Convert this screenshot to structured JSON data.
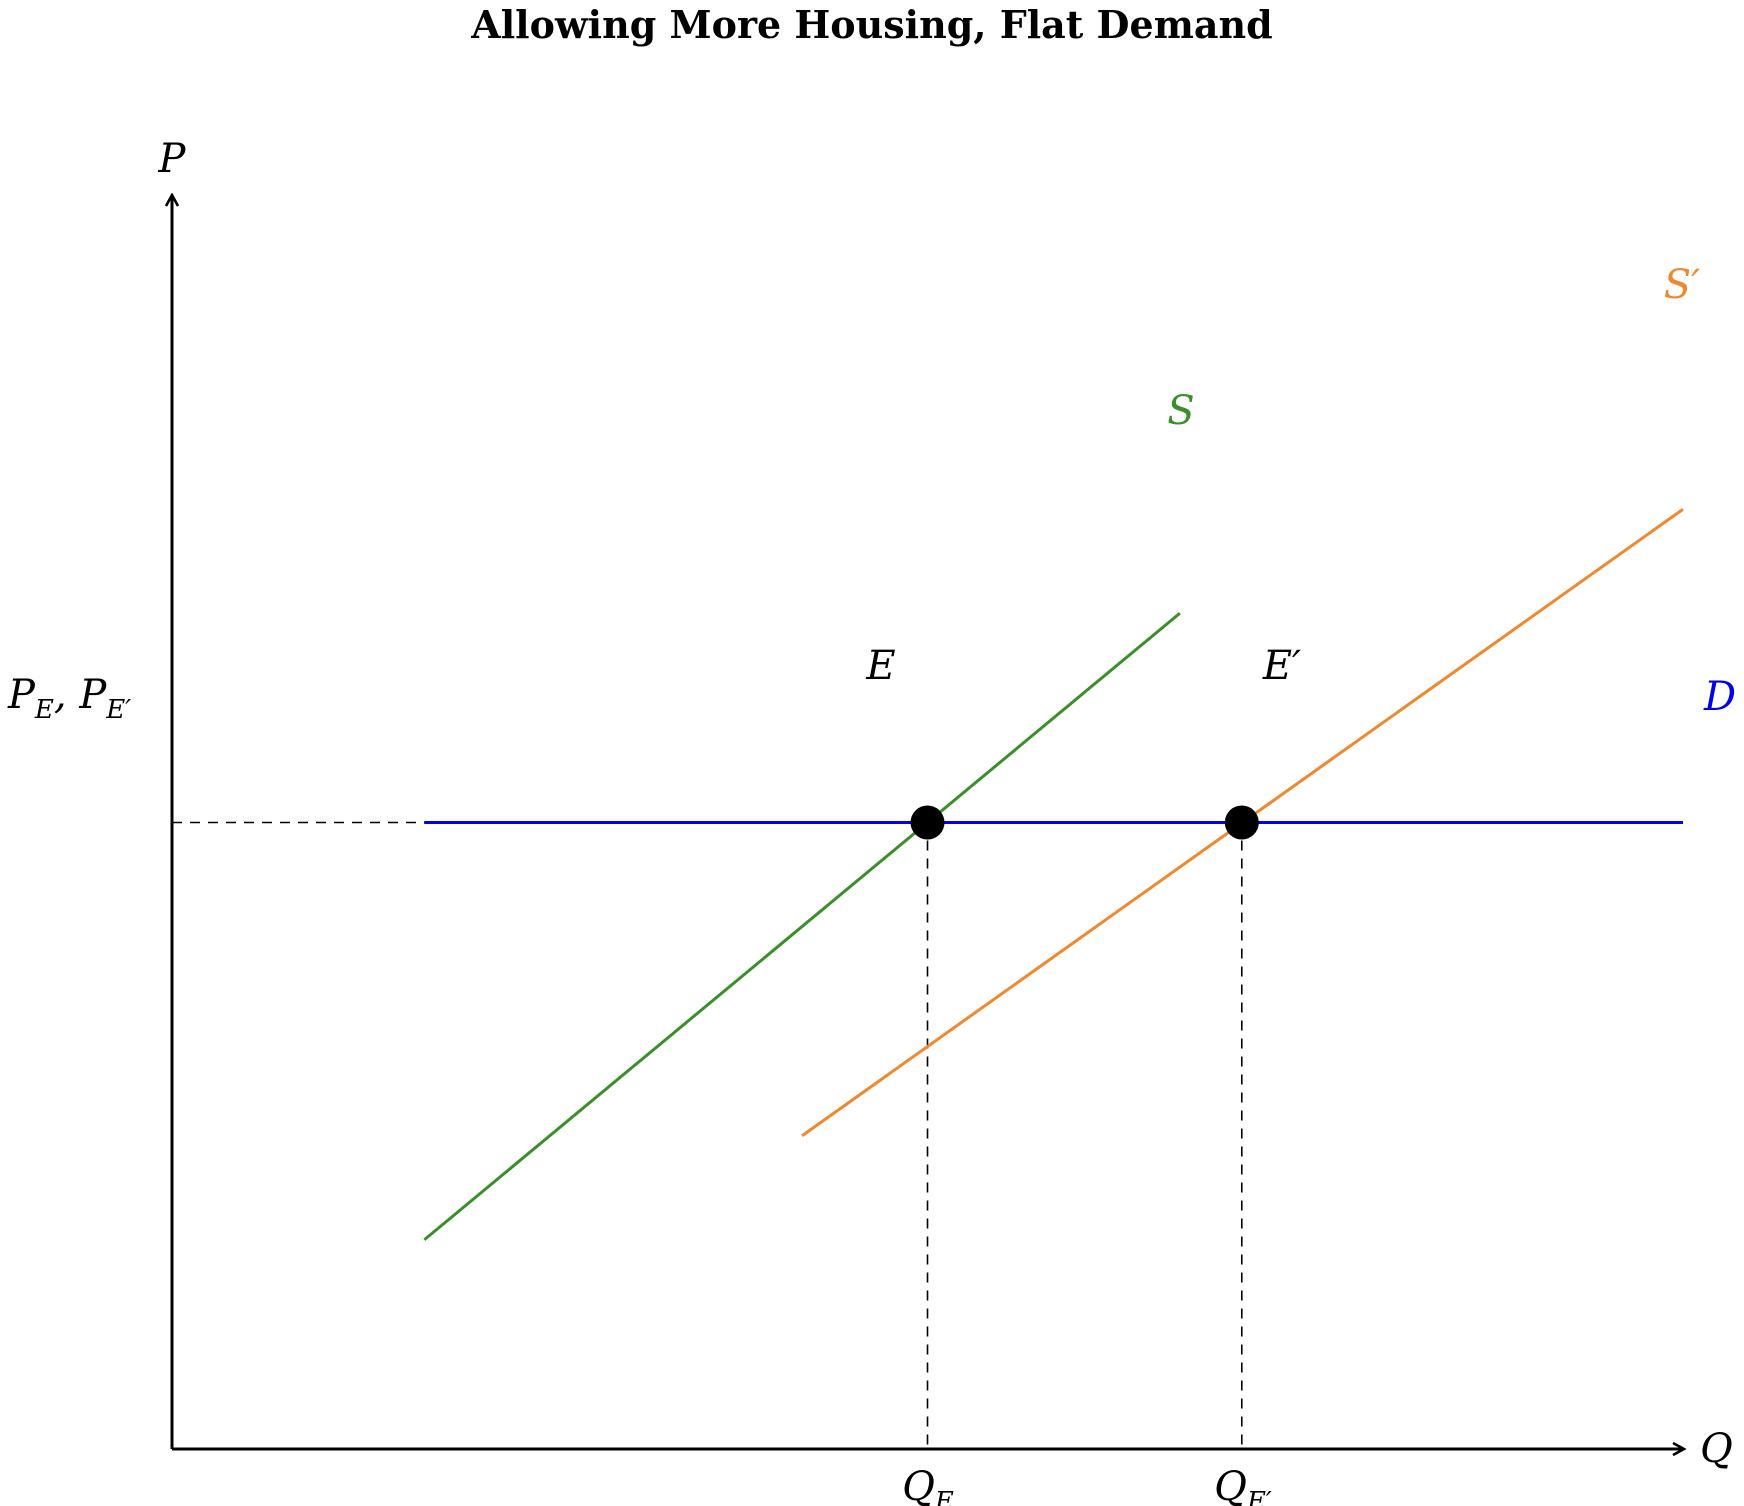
{
  "chart_data": {
    "type": "line",
    "title": "Allowing More Housing, Flat Demand",
    "xlabel": "Q",
    "ylabel": "P",
    "grid": false,
    "xlim": [
      0,
      10
    ],
    "ylim": [
      0,
      10
    ],
    "series": [
      {
        "name": "S",
        "color": "#3a8f2a",
        "x": [
          1.67,
          6.67
        ],
        "y": [
          1.67,
          6.67
        ]
      },
      {
        "name": "S′",
        "color": "#f0882f",
        "x": [
          4.17,
          10.0
        ],
        "y": [
          2.5,
          7.5
        ]
      },
      {
        "name": "D",
        "color": "#0000ee",
        "x": [
          1.67,
          10.0
        ],
        "y": [
          5.0,
          5.0
        ]
      }
    ],
    "points": [
      {
        "label": "E",
        "x": 5.0,
        "y": 5.0
      },
      {
        "label": "E′",
        "x": 7.08,
        "y": 5.0
      }
    ],
    "reference_lines": {
      "price_label": "P_E, P_E′",
      "quantity_labels": [
        {
          "label": "Q_E",
          "x": 5.0
        },
        {
          "label": "Q_E′",
          "x": 7.08
        }
      ]
    }
  },
  "labels": {
    "axis_x": "Q",
    "axis_y": "P",
    "S": "S",
    "S_prime": "S",
    "D": "D",
    "E": "E",
    "E_prime": "E",
    "prime": "′",
    "PE_main": "P",
    "PE_sub": "E",
    "PE_comma": ", ",
    "PE2_main": "P",
    "PE2_sub": "E′",
    "QE_main": "Q",
    "QE_sub": "E",
    "QE2_main": "Q",
    "QE2_sub": "E′"
  }
}
